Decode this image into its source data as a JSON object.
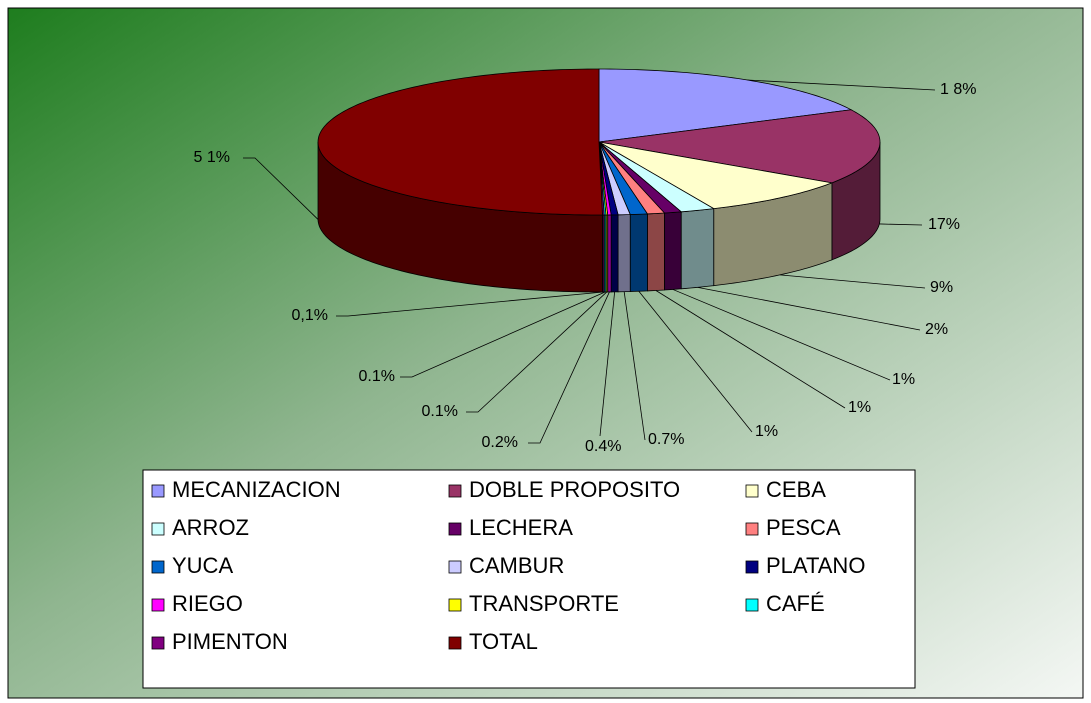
{
  "chart_data": {
    "type": "pie",
    "categories": [
      "MECANIZACION",
      "DOBLE PROPOSITO",
      "CEBA",
      "ARROZ",
      "LECHERA",
      "PESCA",
      "YUCA",
      "CAMBUR",
      "PLATANO",
      "RIEGO",
      "TRANSPORTE",
      "CAFÉ",
      "PIMENTON",
      "TOTAL"
    ],
    "values": [
      18,
      17,
      9,
      2,
      1,
      1,
      1,
      0.7,
      0.4,
      0.2,
      0.1,
      0.1,
      0.1,
      51
    ],
    "value_labels": [
      "1 8%",
      "17%",
      "9%",
      "2%",
      "1%",
      "1%",
      "1%",
      "0.7%",
      "0.4%",
      "0.2%",
      "0.1%",
      "0.1%",
      "0,1%",
      "5 1%"
    ],
    "colors": [
      "#9999ff",
      "#993366",
      "#ffffcc",
      "#ccffff",
      "#660066",
      "#ff8080",
      "#0066cc",
      "#ccccff",
      "#000080",
      "#ff00ff",
      "#ffff00",
      "#00ffff",
      "#800080",
      "#800000"
    ],
    "legend": "bottom"
  }
}
